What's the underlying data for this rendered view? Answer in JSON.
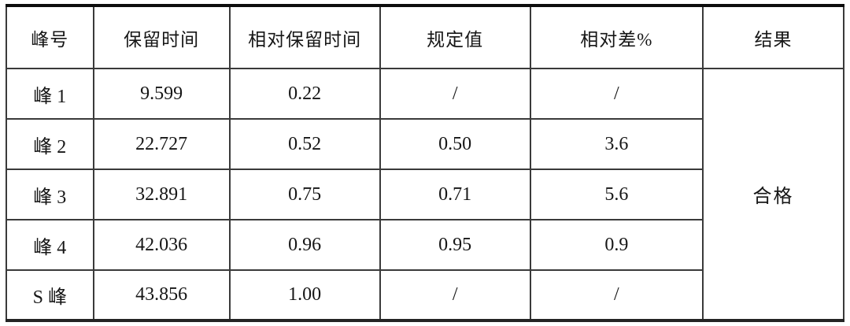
{
  "table": {
    "columns": [
      {
        "label": "峰号"
      },
      {
        "label": "保留时间"
      },
      {
        "label": "相对保留时间"
      },
      {
        "label": "规定值"
      },
      {
        "label": "相对差%"
      },
      {
        "label": "结果"
      }
    ],
    "rows": [
      {
        "peak": "峰 1",
        "retention_time": "9.599",
        "relative_retention_time": "0.22",
        "specified_value": "/",
        "relative_diff": "/"
      },
      {
        "peak": "峰 2",
        "retention_time": "22.727",
        "relative_retention_time": "0.52",
        "specified_value": "0.50",
        "relative_diff": "3.6"
      },
      {
        "peak": "峰 3",
        "retention_time": "32.891",
        "relative_retention_time": "0.75",
        "specified_value": "0.71",
        "relative_diff": "5.6"
      },
      {
        "peak": "峰 4",
        "retention_time": "42.036",
        "relative_retention_time": "0.96",
        "specified_value": "0.95",
        "relative_diff": "0.9"
      },
      {
        "peak": "S 峰",
        "retention_time": "43.856",
        "relative_retention_time": "1.00",
        "specified_value": "/",
        "relative_diff": "/"
      }
    ],
    "result": "合格"
  },
  "colors": {
    "background": "#ffffff",
    "text": "#161616",
    "outer_border": "#0d0d0d",
    "grid_line": "#3a3a3a"
  }
}
